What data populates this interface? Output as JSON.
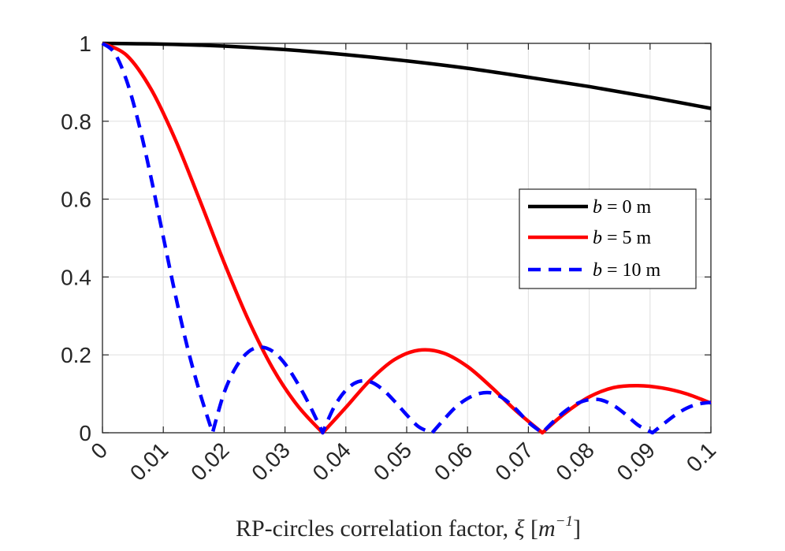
{
  "chart_data": {
    "type": "line",
    "title": "",
    "xlabel": "RP-circles correlation factor, ξ [m⁻¹]",
    "ylabel": "",
    "xlim": [
      0,
      0.1
    ],
    "ylim": [
      0,
      1
    ],
    "grid": true,
    "legend_position": "center-right",
    "x_ticks": [
      0,
      0.01,
      0.02,
      0.03,
      0.04,
      0.05,
      0.06,
      0.07,
      0.08,
      0.09,
      0.1
    ],
    "x_tick_labels": [
      "0",
      "0.01",
      "0.02",
      "0.03",
      "0.04",
      "0.05",
      "0.06",
      "0.07",
      "0.08",
      "0.09",
      "0.1"
    ],
    "y_ticks": [
      0,
      0.2,
      0.4,
      0.6,
      0.8,
      1
    ],
    "y_tick_labels": [
      "0",
      "0.2",
      "0.4",
      "0.6",
      "0.8",
      "1"
    ],
    "series": [
      {
        "name": "b = 0 m",
        "color": "#000000",
        "dash": "solid",
        "x": [
          0,
          0.01,
          0.02,
          0.03,
          0.04,
          0.05,
          0.06,
          0.07,
          0.08,
          0.09,
          0.1
        ],
        "y": [
          1.0,
          0.998,
          0.993,
          0.984,
          0.971,
          0.955,
          0.936,
          0.913,
          0.889,
          0.862,
          0.833
        ]
      },
      {
        "name": "b = 5 m",
        "color": "#ff0000",
        "dash": "solid",
        "x": [
          0,
          0.004,
          0.008,
          0.012,
          0.016,
          0.02,
          0.024,
          0.028,
          0.032,
          0.0362,
          0.04,
          0.044,
          0.048,
          0.052,
          0.056,
          0.06,
          0.064,
          0.068,
          0.0723,
          0.076,
          0.08,
          0.084,
          0.088,
          0.092,
          0.096,
          0.1
        ],
        "y": [
          1.0,
          0.969,
          0.882,
          0.752,
          0.597,
          0.437,
          0.289,
          0.165,
          0.071,
          0.0,
          0.065,
          0.135,
          0.188,
          0.212,
          0.205,
          0.17,
          0.116,
          0.056,
          0.0,
          0.05,
          0.092,
          0.116,
          0.121,
          0.115,
          0.1,
          0.076
        ]
      },
      {
        "name": "b = 10 m",
        "color": "#0000ff",
        "dash": "dashed",
        "x": [
          0,
          0.002,
          0.004,
          0.006,
          0.008,
          0.01,
          0.012,
          0.014,
          0.016,
          0.0181,
          0.02,
          0.022,
          0.024,
          0.026,
          0.028,
          0.03,
          0.032,
          0.034,
          0.0362,
          0.038,
          0.04,
          0.042,
          0.044,
          0.046,
          0.048,
          0.05,
          0.052,
          0.0542,
          0.056,
          0.058,
          0.06,
          0.062,
          0.064,
          0.066,
          0.068,
          0.07,
          0.0723,
          0.074,
          0.076,
          0.078,
          0.08,
          0.082,
          0.084,
          0.086,
          0.088,
          0.0904,
          0.092,
          0.094,
          0.096,
          0.098,
          0.1
        ],
        "y": [
          1.0,
          0.975,
          0.903,
          0.792,
          0.654,
          0.503,
          0.353,
          0.217,
          0.103,
          0.0,
          0.103,
          0.17,
          0.208,
          0.22,
          0.209,
          0.177,
          0.129,
          0.072,
          0.0,
          0.064,
          0.109,
          0.131,
          0.131,
          0.112,
          0.081,
          0.046,
          0.015,
          0.0,
          0.032,
          0.065,
          0.088,
          0.101,
          0.102,
          0.087,
          0.06,
          0.027,
          0.0,
          0.027,
          0.055,
          0.075,
          0.085,
          0.084,
          0.07,
          0.047,
          0.02,
          0.0,
          0.02,
          0.044,
          0.063,
          0.074,
          0.078
        ]
      }
    ]
  },
  "legend": {
    "entries": [
      {
        "var": "b",
        "rest": " = 0 m"
      },
      {
        "var": "b",
        "rest": " = 5 m"
      },
      {
        "var": "b",
        "rest": " = 10 m"
      }
    ]
  },
  "xlabel_parts": {
    "main": "RP-circles correlation factor, ",
    "xi": "ξ",
    "unit_open": " [",
    "unit_var": "m",
    "unit_exp": "−1",
    "unit_close": "]"
  }
}
